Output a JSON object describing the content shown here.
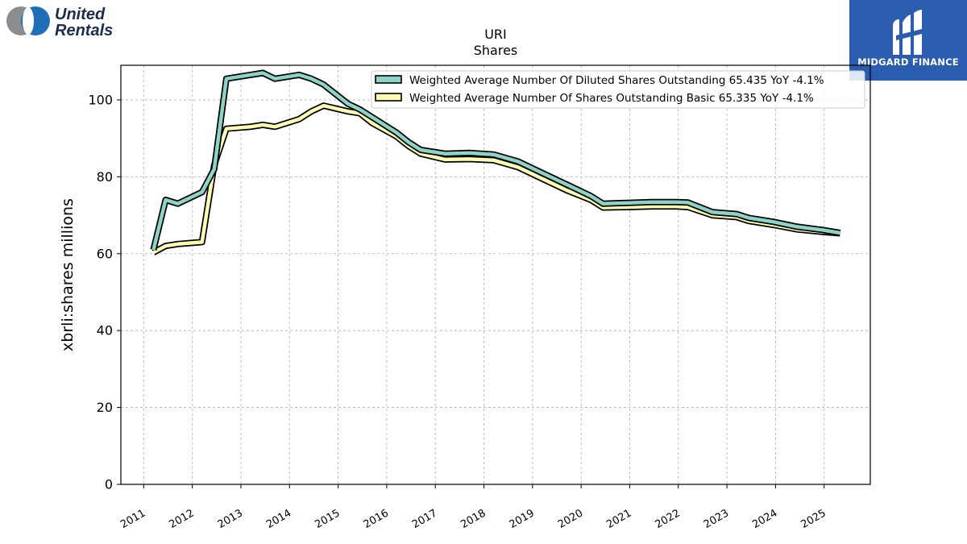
{
  "branding": {
    "company_logo_line1": "United",
    "company_logo_line2": "Rentals",
    "publisher_name": "MIDGARD FINANCE"
  },
  "colors": {
    "diluted": "#8dd3c7",
    "basic": "#ffffb3",
    "outline": "#000000",
    "grid": "#b0b0b0",
    "brand_blue": "#2a5db0"
  },
  "chart_data": {
    "type": "line",
    "title": "URI",
    "subtitle": "Shares",
    "ylabel": "xbrli:shares millions",
    "xlabel": "",
    "xlim": [
      2010.53,
      2025.95
    ],
    "ylim": [
      0,
      109
    ],
    "yticks": [
      0,
      20,
      40,
      60,
      80,
      100
    ],
    "xticks": [
      "2011",
      "2012",
      "2013",
      "2014",
      "2015",
      "2016",
      "2017",
      "2018",
      "2019",
      "2020",
      "2021",
      "2022",
      "2023",
      "2024",
      "2025"
    ],
    "grid": true,
    "legend_position": "top-right",
    "series": [
      {
        "name": "Weighted Average Number Of Diluted Shares Outstanding",
        "legend_label": "Weighted Average Number Of Diluted Shares Outstanding  65.435 YoY -4.1%",
        "color_key": "diluted",
        "points": [
          [
            2011.2,
            61.0
          ],
          [
            2011.45,
            74.0
          ],
          [
            2011.7,
            73.0
          ],
          [
            2012.2,
            76.0
          ],
          [
            2012.45,
            82.0
          ],
          [
            2012.7,
            105.5
          ],
          [
            2013.2,
            106.5
          ],
          [
            2013.45,
            107.0
          ],
          [
            2013.7,
            105.5
          ],
          [
            2014.2,
            106.5
          ],
          [
            2014.45,
            105.5
          ],
          [
            2014.7,
            104.0
          ],
          [
            2015.2,
            99.0
          ],
          [
            2015.45,
            97.5
          ],
          [
            2015.7,
            95.5
          ],
          [
            2016.2,
            91.5
          ],
          [
            2016.45,
            89.0
          ],
          [
            2016.7,
            87.0
          ],
          [
            2017.2,
            86.0
          ],
          [
            2017.7,
            86.2
          ],
          [
            2018.2,
            85.8
          ],
          [
            2018.7,
            84.0
          ],
          [
            2019.2,
            81.0
          ],
          [
            2019.7,
            78.0
          ],
          [
            2020.2,
            75.0
          ],
          [
            2020.45,
            73.0
          ],
          [
            2020.95,
            73.2
          ],
          [
            2021.45,
            73.4
          ],
          [
            2021.95,
            73.4
          ],
          [
            2022.2,
            73.3
          ],
          [
            2022.7,
            70.8
          ],
          [
            2023.2,
            70.3
          ],
          [
            2023.45,
            69.3
          ],
          [
            2023.95,
            68.3
          ],
          [
            2024.45,
            67.0
          ],
          [
            2024.95,
            66.2
          ],
          [
            2025.33,
            65.4
          ]
        ]
      },
      {
        "name": "Weighted Average Number Of Shares Outstanding Basic",
        "legend_label": "Weighted Average Number Of Shares Outstanding Basic  65.335 YoY -4.1%",
        "color_key": "basic",
        "points": [
          [
            2011.2,
            60.3
          ],
          [
            2011.45,
            62.0
          ],
          [
            2011.7,
            62.5
          ],
          [
            2012.2,
            63.0
          ],
          [
            2012.45,
            83.0
          ],
          [
            2012.7,
            92.5
          ],
          [
            2013.2,
            93.0
          ],
          [
            2013.45,
            93.5
          ],
          [
            2013.7,
            93.0
          ],
          [
            2014.2,
            95.0
          ],
          [
            2014.45,
            97.0
          ],
          [
            2014.7,
            98.5
          ],
          [
            2015.2,
            97.0
          ],
          [
            2015.45,
            96.5
          ],
          [
            2015.7,
            94.0
          ],
          [
            2016.2,
            90.5
          ],
          [
            2016.45,
            88.0
          ],
          [
            2016.7,
            86.0
          ],
          [
            2017.2,
            84.5
          ],
          [
            2017.7,
            84.6
          ],
          [
            2018.2,
            84.3
          ],
          [
            2018.7,
            82.5
          ],
          [
            2019.2,
            79.5
          ],
          [
            2019.7,
            76.5
          ],
          [
            2020.2,
            74.0
          ],
          [
            2020.45,
            72.0
          ],
          [
            2020.95,
            72.1
          ],
          [
            2021.45,
            72.3
          ],
          [
            2021.95,
            72.3
          ],
          [
            2022.2,
            72.1
          ],
          [
            2022.7,
            70.0
          ],
          [
            2023.2,
            69.5
          ],
          [
            2023.45,
            68.5
          ],
          [
            2023.95,
            67.5
          ],
          [
            2024.45,
            66.3
          ],
          [
            2024.95,
            65.7
          ],
          [
            2025.33,
            65.3
          ]
        ]
      }
    ]
  }
}
